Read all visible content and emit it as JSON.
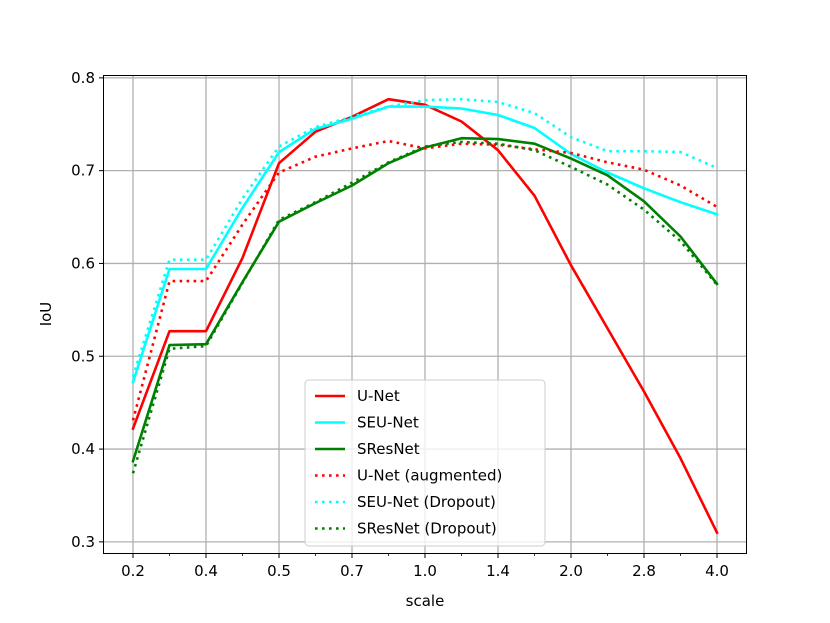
{
  "chart_data": {
    "type": "line",
    "title": "",
    "xlabel": "scale",
    "ylabel": "IoU",
    "x_tick_labels": [
      "0.2",
      "0.4",
      "0.5",
      "0.7",
      "1.0",
      "1.4",
      "2.0",
      "2.8",
      "4.0"
    ],
    "x_positions_count": 17,
    "x_tick_positions": [
      0,
      2,
      4,
      6,
      8,
      10,
      12,
      14,
      16
    ],
    "y_ticks": [
      0.3,
      0.4,
      0.5,
      0.6,
      0.7,
      0.8
    ],
    "y_tick_labels": [
      "0.3",
      "0.4",
      "0.5",
      "0.6",
      "0.7",
      "0.8"
    ],
    "ylim": [
      0.288,
      0.802
    ],
    "grid": true,
    "legend_position": "lower-center",
    "series": [
      {
        "name": "U-Net",
        "color": "#ff0000",
        "style": "solid",
        "values": [
          0.422,
          0.527,
          0.527,
          0.606,
          0.708,
          0.742,
          0.758,
          0.777,
          0.771,
          0.753,
          0.722,
          0.673,
          0.598,
          0.53,
          0.462,
          0.39,
          0.31
        ]
      },
      {
        "name": "SEU-Net",
        "color": "#00ffff",
        "style": "solid",
        "values": [
          0.472,
          0.594,
          0.594,
          0.66,
          0.72,
          0.745,
          0.756,
          0.769,
          0.769,
          0.767,
          0.76,
          0.746,
          0.718,
          0.698,
          0.681,
          0.666,
          0.653
        ]
      },
      {
        "name": "SResNet",
        "color": "#008000",
        "style": "solid",
        "values": [
          0.387,
          0.512,
          0.513,
          0.58,
          0.645,
          0.665,
          0.684,
          0.708,
          0.725,
          0.735,
          0.734,
          0.729,
          0.713,
          0.695,
          0.667,
          0.629,
          0.578
        ]
      },
      {
        "name": "U-Net (augmented)",
        "color": "#ff0000",
        "style": "dotted",
        "values": [
          0.431,
          0.581,
          0.581,
          0.642,
          0.698,
          0.715,
          0.724,
          0.732,
          0.724,
          0.729,
          0.728,
          0.723,
          0.719,
          0.709,
          0.701,
          0.684,
          0.661
        ]
      },
      {
        "name": "SEU-Net (Dropout)",
        "color": "#00ffff",
        "style": "dotted",
        "values": [
          0.478,
          0.604,
          0.604,
          0.67,
          0.726,
          0.747,
          0.758,
          0.769,
          0.776,
          0.777,
          0.774,
          0.762,
          0.736,
          0.721,
          0.721,
          0.72,
          0.703
        ]
      },
      {
        "name": "SResNet (Dropout)",
        "color": "#008000",
        "style": "dotted",
        "values": [
          0.374,
          0.508,
          0.511,
          0.579,
          0.647,
          0.666,
          0.687,
          0.709,
          0.726,
          0.731,
          0.729,
          0.722,
          0.704,
          0.685,
          0.658,
          0.624,
          0.577
        ]
      }
    ]
  }
}
